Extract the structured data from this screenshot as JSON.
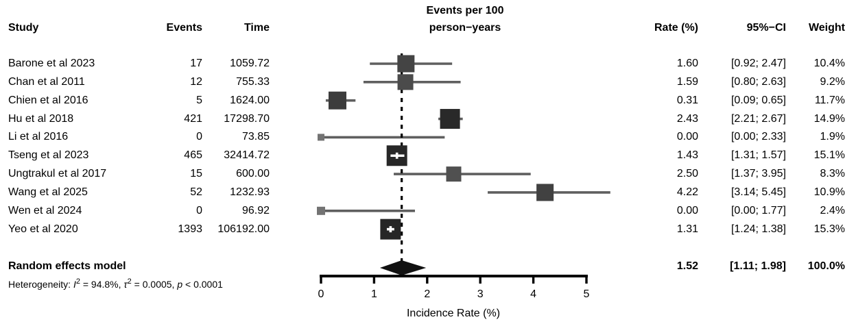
{
  "header": {
    "study": "Study",
    "events": "Events",
    "time": "Time",
    "plot_title_line1": "Events per 100",
    "plot_title_line2": "person−years",
    "rate": "Rate (%)",
    "ci": "95%−CI",
    "weight": "Weight"
  },
  "footer": {
    "pooled_label": "Random effects model",
    "heterogeneity_parts": [
      {
        "t": "Heterogeneity: "
      },
      {
        "t": "I",
        "it": 1
      },
      {
        "t": "2",
        "sup": 1
      },
      {
        "t": " = 94.8%, "
      },
      {
        "t": "τ",
        "it": 1
      },
      {
        "t": "2",
        "sup": 1
      },
      {
        "t": " = 0.0005, "
      },
      {
        "t": "p",
        "it": 1
      },
      {
        "t": " < 0.0001"
      }
    ]
  },
  "chart_data": {
    "type": "forest",
    "title": "Events per 100 person−years",
    "xlabel": "Incidence Rate (%)",
    "xlim": [
      0,
      5
    ],
    "xticks": [
      "0",
      "1",
      "2",
      "3",
      "4",
      "5"
    ],
    "effect_measure": "Rate (%) with 95%-CI",
    "studies": [
      {
        "name": "Barone et al 2023",
        "events": "17",
        "time": "1059.72",
        "rate": 1.6,
        "ci_low": 0.92,
        "ci_high": 2.47,
        "rate_label": "1.60",
        "ci_label": "[0.92; 2.47]",
        "weight": 10.4,
        "weight_label": "10.4%"
      },
      {
        "name": "Chan et al 2011",
        "events": "12",
        "time": "755.33",
        "rate": 1.59,
        "ci_low": 0.8,
        "ci_high": 2.63,
        "rate_label": "1.59",
        "ci_label": "[0.80; 2.63]",
        "weight": 9.2,
        "weight_label": "9.2%"
      },
      {
        "name": "Chien et al 2016",
        "events": "5",
        "time": "1624.00",
        "rate": 0.31,
        "ci_low": 0.09,
        "ci_high": 0.65,
        "rate_label": "0.31",
        "ci_label": "[0.09; 0.65]",
        "weight": 11.7,
        "weight_label": "11.7%"
      },
      {
        "name": "Hu et al 2018",
        "events": "421",
        "time": "17298.70",
        "rate": 2.43,
        "ci_low": 2.21,
        "ci_high": 2.67,
        "rate_label": "2.43",
        "ci_label": "[2.21; 2.67]",
        "weight": 14.9,
        "weight_label": "14.9%"
      },
      {
        "name": "Li et al 2016",
        "events": "0",
        "time": "73.85",
        "rate": 0.0,
        "ci_low": 0.0,
        "ci_high": 2.33,
        "rate_label": "0.00",
        "ci_label": "[0.00; 2.33]",
        "weight": 1.9,
        "weight_label": "1.9%"
      },
      {
        "name": "Tseng et al 2023",
        "events": "465",
        "time": "32414.72",
        "rate": 1.43,
        "ci_low": 1.31,
        "ci_high": 1.57,
        "rate_label": "1.43",
        "ci_label": "[1.31; 1.57]",
        "weight": 15.1,
        "weight_label": "15.1%"
      },
      {
        "name": "Ungtrakul et al 2017",
        "events": "15",
        "time": "600.00",
        "rate": 2.5,
        "ci_low": 1.37,
        "ci_high": 3.95,
        "rate_label": "2.50",
        "ci_label": "[1.37; 3.95]",
        "weight": 8.3,
        "weight_label": "8.3%"
      },
      {
        "name": "Wang et al 2025",
        "events": "52",
        "time": "1232.93",
        "rate": 4.22,
        "ci_low": 3.14,
        "ci_high": 5.45,
        "rate_label": "4.22",
        "ci_label": "[3.14; 5.45]",
        "weight": 10.9,
        "weight_label": "10.9%"
      },
      {
        "name": "Wen et al 2024",
        "events": "0",
        "time": "96.92",
        "rate": 0.0,
        "ci_low": 0.0,
        "ci_high": 1.77,
        "rate_label": "0.00",
        "ci_label": "[0.00; 1.77]",
        "weight": 2.4,
        "weight_label": "2.4%"
      },
      {
        "name": "Yeo et al 2020",
        "events": "1393",
        "time": "106192.00",
        "rate": 1.31,
        "ci_low": 1.24,
        "ci_high": 1.38,
        "rate_label": "1.31",
        "ci_label": "[1.24; 1.38]",
        "weight": 15.3,
        "weight_label": "15.3%"
      }
    ],
    "pooled": {
      "label": "Random effects model",
      "rate": 1.52,
      "ci_low": 1.11,
      "ci_high": 1.98,
      "rate_label": "1.52",
      "ci_label": "[1.11; 1.98]",
      "weight_label": "100.0%"
    },
    "heterogeneity": {
      "I2": "94.8%",
      "tau2": "0.0005",
      "p": "< 0.0001"
    },
    "colors": {
      "ci_line": "#5f5f5f",
      "diamond": "#111111",
      "axis": "#000000",
      "dashed_ref_line": "#000000"
    }
  }
}
